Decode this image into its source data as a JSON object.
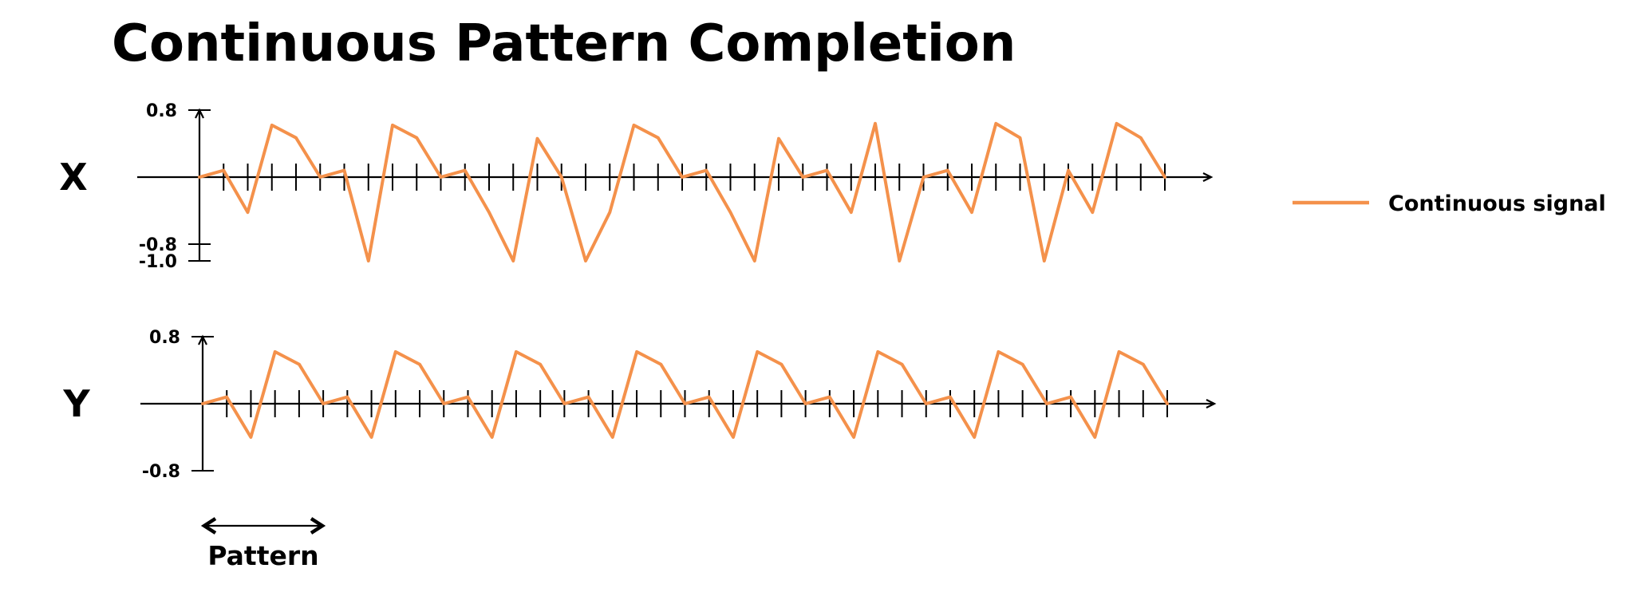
{
  "chart_data": {
    "type": "line",
    "title": "Continuous Pattern Completion",
    "legend": {
      "position": "right",
      "entries": [
        {
          "label": "Continuous signal",
          "color": "#F4914B"
        }
      ]
    },
    "series_color": "#F4914B",
    "grid": false,
    "annotation": {
      "label": "Pattern",
      "x_start": 0,
      "x_end": 5
    },
    "x_ticks": 40,
    "panels": [
      {
        "label": "X",
        "ylim": [
          -1.0,
          0.8
        ],
        "y_ticks": [
          {
            "value": 0.8,
            "label": "0.8"
          },
          {
            "value": -0.8,
            "label": "-0.8"
          },
          {
            "value": -1.0,
            "label": "-1.0"
          }
        ],
        "series": [
          {
            "name": "Continuous signal",
            "x": [
              0,
              1,
              2,
              3,
              4,
              5,
              6,
              7,
              8,
              9,
              10,
              11,
              12,
              13,
              14,
              15,
              16,
              17,
              18,
              19,
              20,
              21,
              22,
              23,
              24,
              25,
              26,
              27,
              28,
              29,
              30,
              31,
              32,
              33,
              34,
              35,
              36,
              37,
              38,
              39,
              40
            ],
            "values": [
              0,
              0.08,
              -0.42,
              0.62,
              0.47,
              0,
              0.08,
              -1.0,
              0.62,
              0.47,
              0,
              0.08,
              -0.42,
              -1.0,
              0.46,
              0,
              -1.0,
              -0.42,
              0.62,
              0.47,
              0,
              0.08,
              -0.42,
              -1.0,
              0.46,
              0,
              0.08,
              -0.42,
              0.64,
              -1.0,
              0,
              0.08,
              -0.42,
              0.64,
              0.47,
              -1.0,
              0.08,
              -0.42,
              0.64,
              0.47,
              0
            ]
          }
        ]
      },
      {
        "label": "Y",
        "ylim": [
          -0.8,
          0.8
        ],
        "y_ticks": [
          {
            "value": 0.8,
            "label": "0.8"
          },
          {
            "value": -0.8,
            "label": "-0.8"
          }
        ],
        "series": [
          {
            "name": "Continuous signal",
            "x": [
              0,
              1,
              2,
              3,
              4,
              5,
              6,
              7,
              8,
              9,
              10,
              11,
              12,
              13,
              14,
              15,
              16,
              17,
              18,
              19,
              20,
              21,
              22,
              23,
              24,
              25,
              26,
              27,
              28,
              29,
              30,
              31,
              32,
              33,
              34,
              35,
              36,
              37,
              38,
              39,
              40
            ],
            "values": [
              0,
              0.08,
              -0.4,
              0.62,
              0.47,
              0,
              0.08,
              -0.4,
              0.62,
              0.47,
              0,
              0.08,
              -0.4,
              0.62,
              0.47,
              0,
              0.08,
              -0.4,
              0.62,
              0.47,
              0,
              0.08,
              -0.4,
              0.62,
              0.47,
              0,
              0.08,
              -0.4,
              0.62,
              0.47,
              0,
              0.08,
              -0.4,
              0.62,
              0.47,
              0,
              0.08,
              -0.4,
              0.62,
              0.47,
              0
            ]
          }
        ]
      }
    ]
  }
}
